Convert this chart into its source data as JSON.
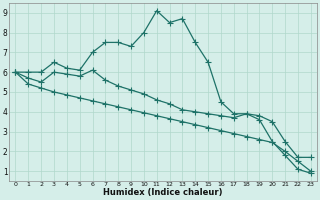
{
  "xlabel": "Humidex (Indice chaleur)",
  "xlim": [
    -0.5,
    23.5
  ],
  "ylim": [
    0.5,
    9.5
  ],
  "yticks": [
    1,
    2,
    3,
    4,
    5,
    6,
    7,
    8,
    9
  ],
  "xticks": [
    0,
    1,
    2,
    3,
    4,
    5,
    6,
    7,
    8,
    9,
    10,
    11,
    12,
    13,
    14,
    15,
    16,
    17,
    18,
    19,
    20,
    21,
    22,
    23
  ],
  "bg_color": "#d5eee9",
  "grid_color": "#b0d8cc",
  "line_color": "#1e7268",
  "curve1_x": [
    0,
    1,
    2,
    3,
    4,
    5,
    6,
    7,
    8,
    9,
    10,
    11,
    12,
    13,
    14,
    15,
    16,
    17,
    18,
    19,
    20,
    21,
    22,
    23
  ],
  "curve1_y": [
    6.0,
    6.0,
    6.0,
    6.5,
    6.2,
    6.1,
    7.0,
    7.5,
    7.5,
    7.3,
    8.0,
    9.1,
    8.5,
    8.7,
    7.5,
    6.5,
    4.5,
    3.9,
    3.9,
    3.6,
    2.5,
    1.8,
    1.1,
    0.9
  ],
  "curve2_x": [
    0,
    1,
    2,
    3,
    4,
    5,
    6,
    7,
    8,
    9,
    10,
    11,
    12,
    13,
    14,
    15,
    16,
    17,
    18,
    19,
    20,
    21,
    22,
    23
  ],
  "curve2_y": [
    6.0,
    5.7,
    5.5,
    6.0,
    5.9,
    5.8,
    6.1,
    5.6,
    5.3,
    5.1,
    4.9,
    4.6,
    4.4,
    4.1,
    4.0,
    3.9,
    3.8,
    3.7,
    3.9,
    3.8,
    3.5,
    2.5,
    1.7,
    1.7
  ],
  "curve3_x": [
    0,
    1,
    2,
    3,
    4,
    5,
    6,
    7,
    8,
    9,
    10,
    11,
    12,
    13,
    14,
    15,
    16,
    17,
    18,
    19,
    20,
    21,
    22,
    23
  ],
  "curve3_y": [
    6.0,
    5.4,
    5.2,
    5.0,
    4.85,
    4.7,
    4.55,
    4.4,
    4.25,
    4.1,
    3.95,
    3.8,
    3.65,
    3.5,
    3.35,
    3.2,
    3.05,
    2.9,
    2.75,
    2.6,
    2.45,
    2.0,
    1.5,
    1.0
  ]
}
